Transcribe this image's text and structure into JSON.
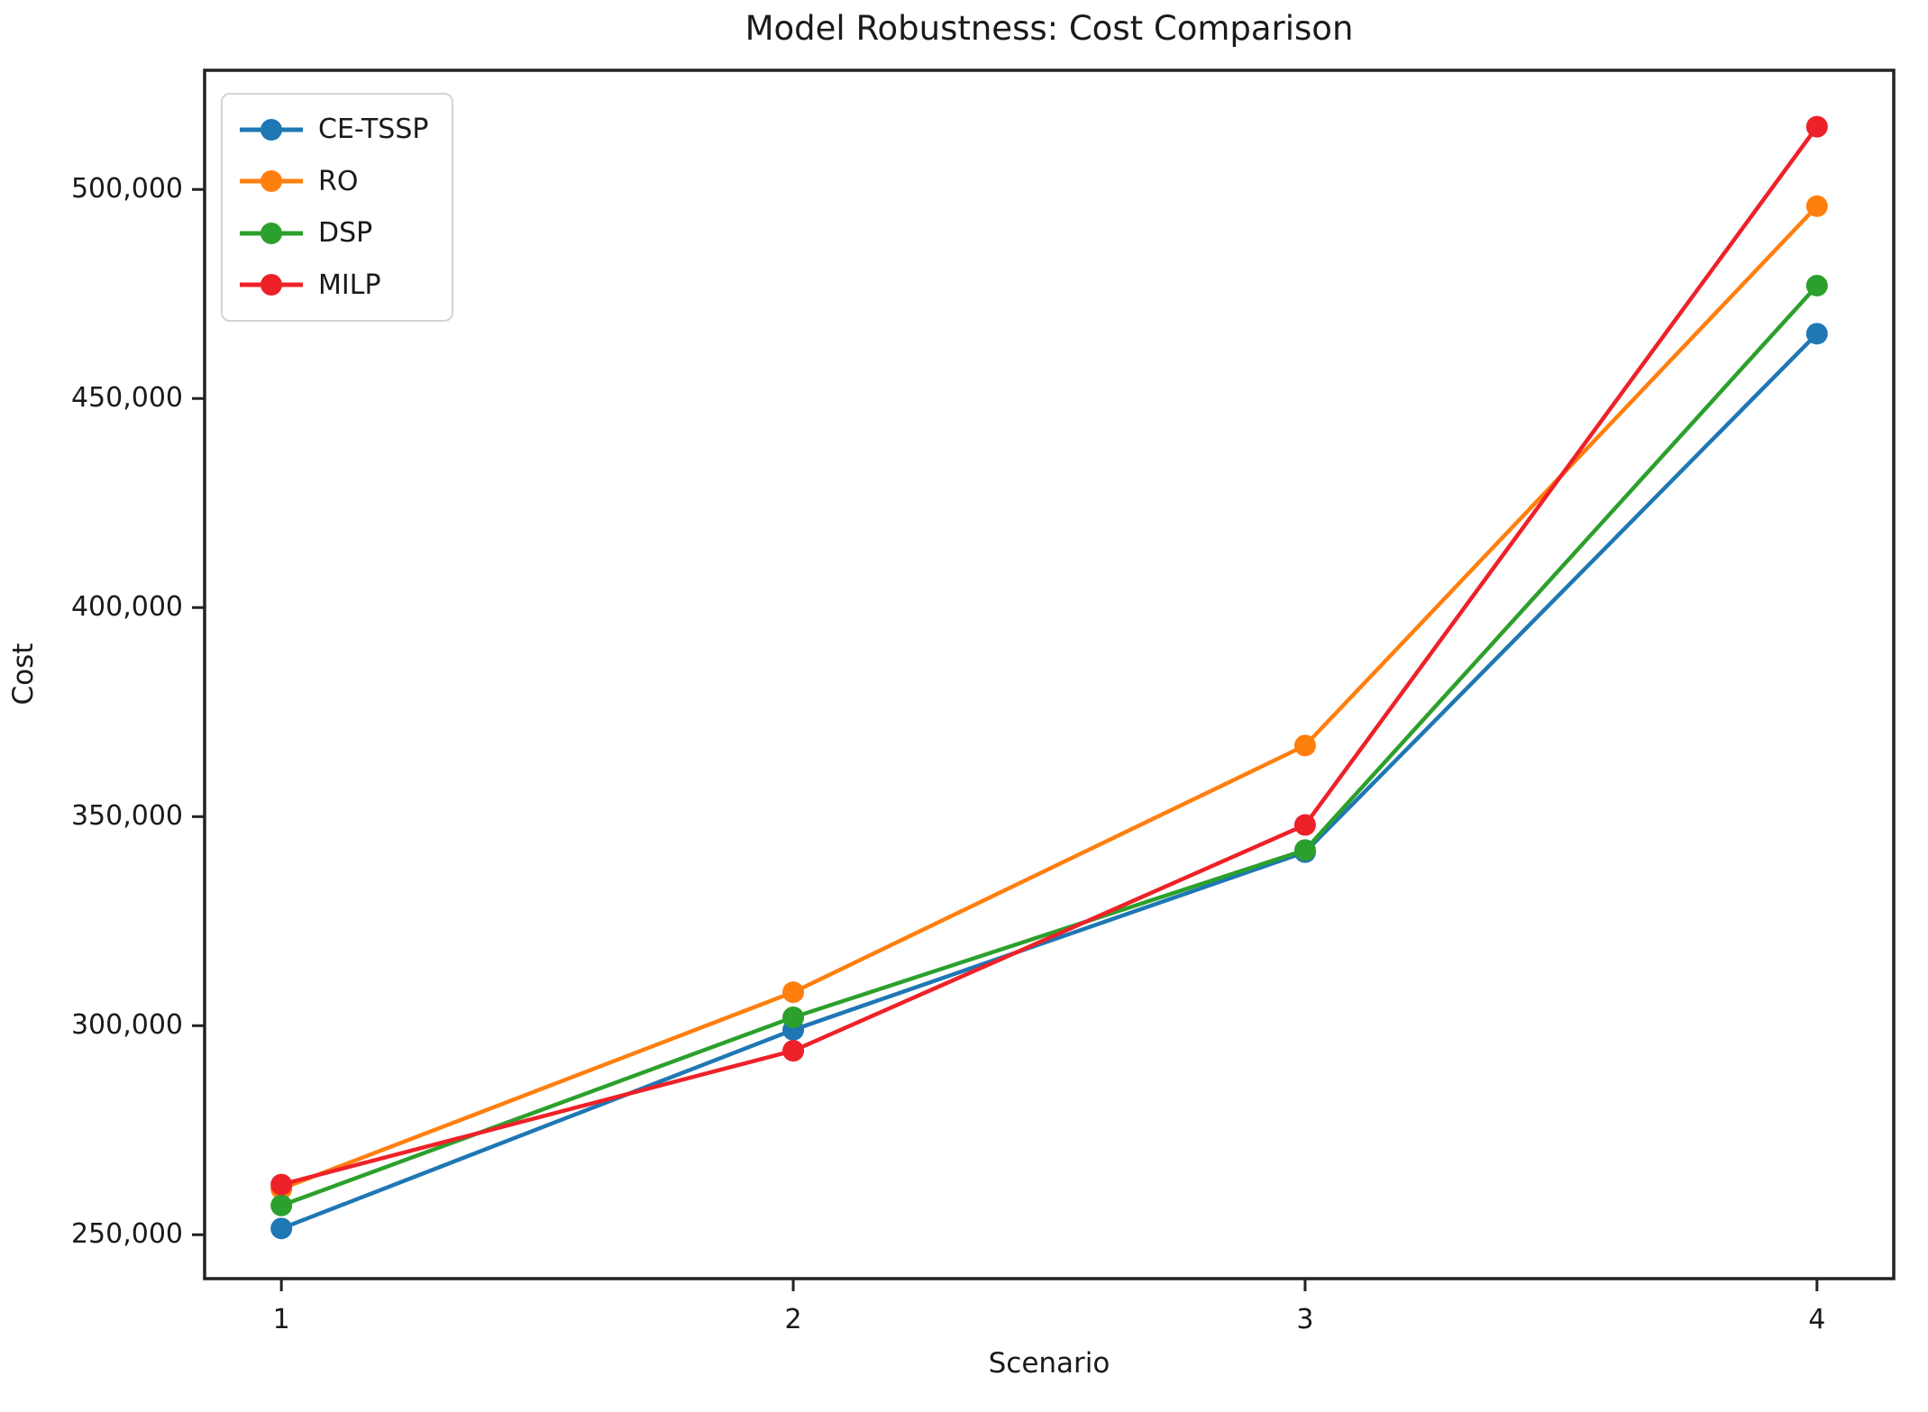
{
  "chart_data": {
    "type": "line",
    "title": "Model Robustness: Cost Comparison",
    "xlabel": "Scenario",
    "ylabel": "Cost",
    "x": [
      1,
      2,
      3,
      4
    ],
    "x_tick_labels": [
      "1",
      "2",
      "3",
      "4"
    ],
    "y_ticks": [
      250000,
      300000,
      350000,
      400000,
      450000,
      500000
    ],
    "y_tick_labels": [
      "250,000",
      "300,000",
      "350,000",
      "400,000",
      "450,000",
      "500,000"
    ],
    "xlim": [
      0.85,
      4.15
    ],
    "ylim": [
      239500,
      528500
    ],
    "grid": false,
    "legend_position": "upper left",
    "marker": "circle",
    "series": [
      {
        "name": "CE-TSSP",
        "color": "#1f77b4",
        "values": [
          251500,
          299000,
          341500,
          465500
        ]
      },
      {
        "name": "RO",
        "color": "#ff7f0e",
        "values": [
          261000,
          308000,
          367000,
          496000
        ]
      },
      {
        "name": "DSP",
        "color": "#2ca02c",
        "values": [
          257000,
          302000,
          342000,
          477000
        ]
      },
      {
        "name": "MILP",
        "color": "#ee2128",
        "values": [
          262000,
          294000,
          348000,
          515000
        ]
      }
    ],
    "spine_color": "#222222"
  }
}
